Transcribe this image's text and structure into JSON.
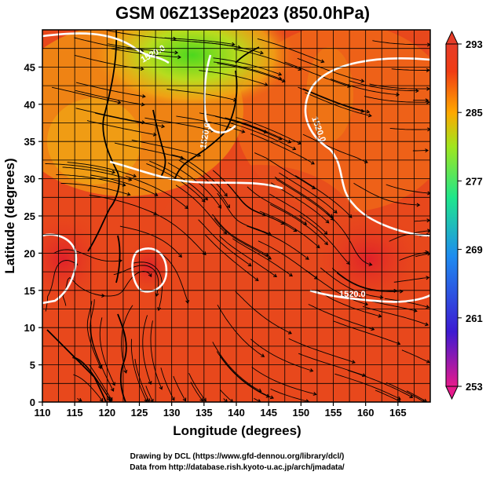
{
  "title": "GSM 06Z13Sep2023 (850.0hPa)",
  "axes": {
    "xlabel": "Longitude (degrees)",
    "ylabel": "Latitude  (degrees)",
    "xlim": [
      110,
      170
    ],
    "ylim": [
      0,
      50
    ],
    "xticks": [
      "110",
      "115",
      "120",
      "125",
      "130",
      "135",
      "140",
      "145",
      "150",
      "155",
      "160",
      "165"
    ],
    "yticks": [
      "0",
      "5",
      "10",
      "15",
      "20",
      "25",
      "30",
      "35",
      "40",
      "45"
    ]
  },
  "colorbar": {
    "ticks": [
      "293",
      "285",
      "277",
      "269",
      "261",
      "253"
    ],
    "range": [
      253,
      293
    ],
    "colors": [
      "#e61a8c",
      "#3c1ad2",
      "#1e8cf0",
      "#1ee68c",
      "#a0e61e",
      "#ffa800",
      "#f03c14",
      "#e63c28"
    ]
  },
  "contour_labels": [
    "1520.0",
    "1520.0",
    "1520.0",
    "1520.0"
  ],
  "credits": {
    "line1": "Drawing by DCL (https://www.gfd-dennou.org/library/dcl/)",
    "line2": "Data from http://database.rish.kyoto-u.ac.jp/arch/jmadata/"
  },
  "colors": {
    "warm": "#e8421c",
    "hot": "#e82a24",
    "mid": "#f06a14",
    "orange": "#f5a010",
    "yellow": "#d8d820",
    "green": "#6ad41e",
    "contour": "#ffffff"
  }
}
